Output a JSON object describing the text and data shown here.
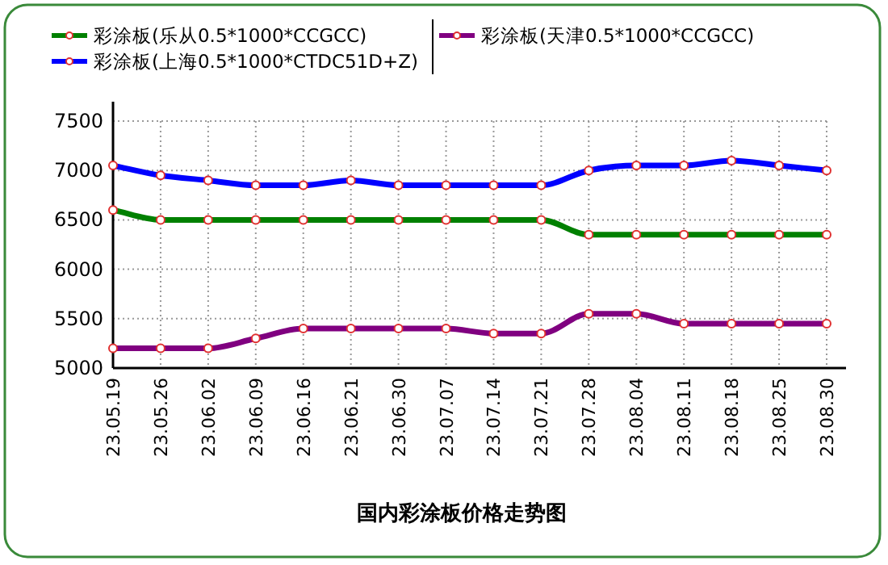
{
  "chart_data": {
    "type": "line",
    "title": "国内彩涂板价格走势图",
    "categories": [
      "23.05.19",
      "23.05.26",
      "23.06.02",
      "23.06.09",
      "23.06.16",
      "23.06.21",
      "23.06.30",
      "23.07.07",
      "23.07.14",
      "23.07.21",
      "23.07.28",
      "23.08.04",
      "23.08.11",
      "23.08.18",
      "23.08.25",
      "23.08.30"
    ],
    "series": [
      {
        "name": "彩涂板(乐从0.5*1000*CCGCC)",
        "color": "#008000",
        "values": [
          6600,
          6500,
          6500,
          6500,
          6500,
          6500,
          6500,
          6500,
          6500,
          6500,
          6350,
          6350,
          6350,
          6350,
          6350,
          6350
        ]
      },
      {
        "name": "彩涂板(上海0.5*1000*CTDC51D+Z)",
        "color": "#0000ff",
        "values": [
          7050,
          6950,
          6900,
          6850,
          6850,
          6900,
          6850,
          6850,
          6850,
          6850,
          7000,
          7050,
          7050,
          7100,
          7050,
          7000
        ]
      },
      {
        "name": "彩涂板(天津0.5*1000*CCGCC)",
        "color": "#800080",
        "values": [
          5200,
          5200,
          5200,
          5300,
          5400,
          5400,
          5400,
          5400,
          5350,
          5350,
          5550,
          5550,
          5450,
          5450,
          5450,
          5450
        ]
      }
    ],
    "ylim": [
      5000,
      7500
    ],
    "yticks": [
      5000,
      5500,
      6000,
      6500,
      7000,
      7500
    ],
    "grid": true,
    "legend": "top",
    "marker": "circle",
    "line_style": "solid"
  }
}
